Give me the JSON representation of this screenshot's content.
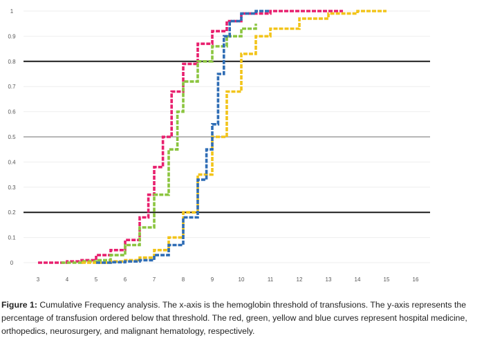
{
  "caption": {
    "label": "Figure 1:",
    "text": " Cumulative Frequency analysis. The x-axis is the hemoglobin threshold of transfusions. The y-axis represents the percentage of transfusion ordered below that threshold. The red, green, yellow and blue curves represent hospital medicine, orthopedics, neurosurgery, and malignant hematology, respectively."
  },
  "chart_data": {
    "type": "line",
    "title": "",
    "xlabel": "",
    "ylabel": "",
    "xlim": [
      2.5,
      16.5
    ],
    "ylim": [
      0,
      1
    ],
    "x_ticks": [
      "3",
      "4",
      "5",
      "6",
      "7",
      "8",
      "9",
      "10",
      "11",
      "12",
      "13",
      "14",
      "15",
      "16"
    ],
    "y_ticks": [
      "0",
      "0.1",
      "0.2",
      "0.3",
      "0.4",
      "0.5",
      "0.6",
      "0.7",
      "0.8",
      "0.9",
      "1"
    ],
    "grid": "horizontal",
    "reference_lines": [
      0.2,
      0.5,
      0.8
    ],
    "legend": "none",
    "series": [
      {
        "color": "#e8206e",
        "points": [
          [
            3.0,
            0
          ],
          [
            3.5,
            0
          ],
          [
            4.0,
            0.005
          ],
          [
            4.5,
            0.01
          ],
          [
            5.0,
            0.03
          ],
          [
            5.5,
            0.05
          ],
          [
            6.0,
            0.09
          ],
          [
            6.5,
            0.18
          ],
          [
            6.8,
            0.27
          ],
          [
            7.0,
            0.38
          ],
          [
            7.3,
            0.5
          ],
          [
            7.6,
            0.68
          ],
          [
            8.0,
            0.79
          ],
          [
            8.5,
            0.87
          ],
          [
            9.0,
            0.92
          ],
          [
            9.5,
            0.96
          ],
          [
            10.0,
            0.99
          ],
          [
            11.0,
            1.0
          ],
          [
            12.0,
            1.0
          ],
          [
            13.0,
            1.0
          ],
          [
            13.5,
            1.0
          ]
        ]
      },
      {
        "color": "#8bc53f",
        "points": [
          [
            3.8,
            0
          ],
          [
            4.5,
            0.005
          ],
          [
            5.0,
            0.01
          ],
          [
            5.5,
            0.03
          ],
          [
            6.0,
            0.07
          ],
          [
            6.5,
            0.14
          ],
          [
            7.0,
            0.27
          ],
          [
            7.5,
            0.45
          ],
          [
            7.8,
            0.6
          ],
          [
            8.0,
            0.72
          ],
          [
            8.5,
            0.8
          ],
          [
            9.0,
            0.86
          ],
          [
            9.5,
            0.9
          ],
          [
            10.0,
            0.93
          ],
          [
            10.5,
            0.95
          ]
        ]
      },
      {
        "color": "#f2c41a",
        "points": [
          [
            4.5,
            0
          ],
          [
            5.0,
            0
          ],
          [
            5.5,
            0.005
          ],
          [
            6.0,
            0.01
          ],
          [
            6.5,
            0.02
          ],
          [
            7.0,
            0.05
          ],
          [
            7.5,
            0.1
          ],
          [
            8.0,
            0.2
          ],
          [
            8.5,
            0.35
          ],
          [
            9.0,
            0.5
          ],
          [
            9.5,
            0.68
          ],
          [
            10.0,
            0.83
          ],
          [
            10.5,
            0.9
          ],
          [
            11.0,
            0.93
          ],
          [
            12.0,
            0.97
          ],
          [
            13.0,
            0.99
          ],
          [
            14.0,
            1.0
          ],
          [
            15.0,
            1.0
          ]
        ]
      },
      {
        "color": "#2f6db5",
        "points": [
          [
            5.0,
            0
          ],
          [
            5.5,
            0.002
          ],
          [
            6.0,
            0.005
          ],
          [
            6.5,
            0.01
          ],
          [
            7.0,
            0.03
          ],
          [
            7.5,
            0.07
          ],
          [
            8.0,
            0.18
          ],
          [
            8.5,
            0.33
          ],
          [
            8.8,
            0.45
          ],
          [
            9.0,
            0.55
          ],
          [
            9.2,
            0.75
          ],
          [
            9.4,
            0.9
          ],
          [
            9.6,
            0.96
          ],
          [
            10.0,
            0.99
          ],
          [
            10.5,
            1.0
          ],
          [
            11.0,
            1.0
          ]
        ]
      }
    ]
  }
}
